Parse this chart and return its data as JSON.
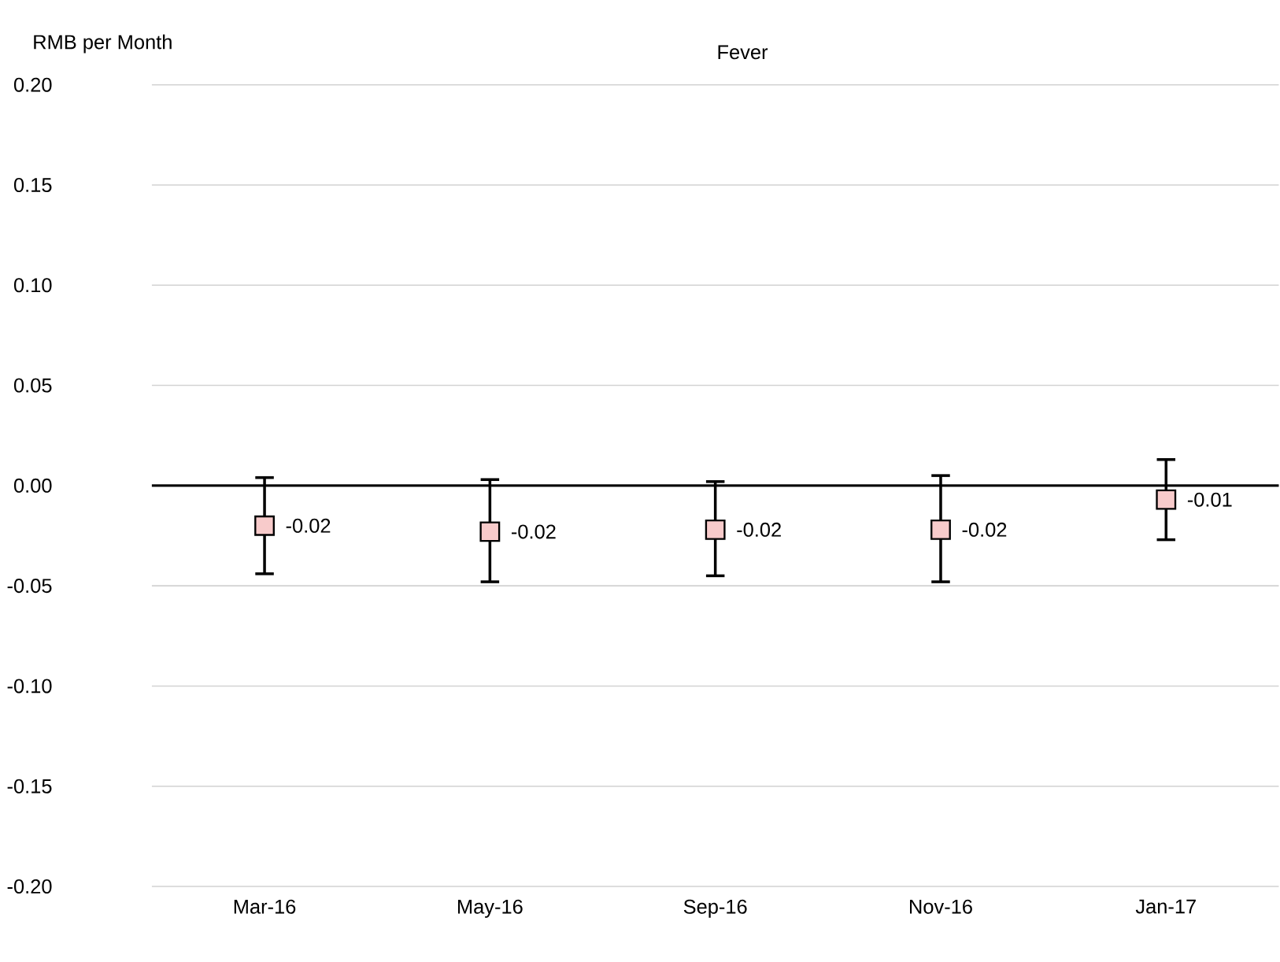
{
  "chart_data": {
    "type": "scatter",
    "title": "Fever",
    "ylabel": "RMB per Month",
    "categories": [
      "Mar-16",
      "May-16",
      "Sep-16",
      "Nov-16",
      "Jan-17"
    ],
    "values": [
      -0.02,
      -0.023,
      -0.022,
      -0.022,
      -0.007
    ],
    "errors": [
      [
        -0.044,
        0.004
      ],
      [
        -0.048,
        0.003
      ],
      [
        -0.045,
        0.002
      ],
      [
        -0.048,
        0.005
      ],
      [
        -0.027,
        0.013
      ]
    ],
    "value_labels": [
      "-0.02",
      "-0.02",
      "-0.02",
      "-0.02",
      "-0.01"
    ],
    "color": "#f8cbcb",
    "marker": "square",
    "grid": "y",
    "ylim": [
      -0.2,
      0.2
    ],
    "yticks": [
      {
        "value": -0.2,
        "label": "-0.20"
      },
      {
        "value": -0.15,
        "label": "-0.15"
      },
      {
        "value": -0.1,
        "label": "-0.10"
      },
      {
        "value": -0.05,
        "label": "-0.05"
      },
      {
        "value": 0,
        "label": "0.00"
      },
      {
        "value": 0.05,
        "label": "0.05"
      },
      {
        "value": 0.1,
        "label": "0.10"
      },
      {
        "value": 0.15,
        "label": "0.15"
      },
      {
        "value": 0.2,
        "label": "0.20"
      }
    ]
  }
}
